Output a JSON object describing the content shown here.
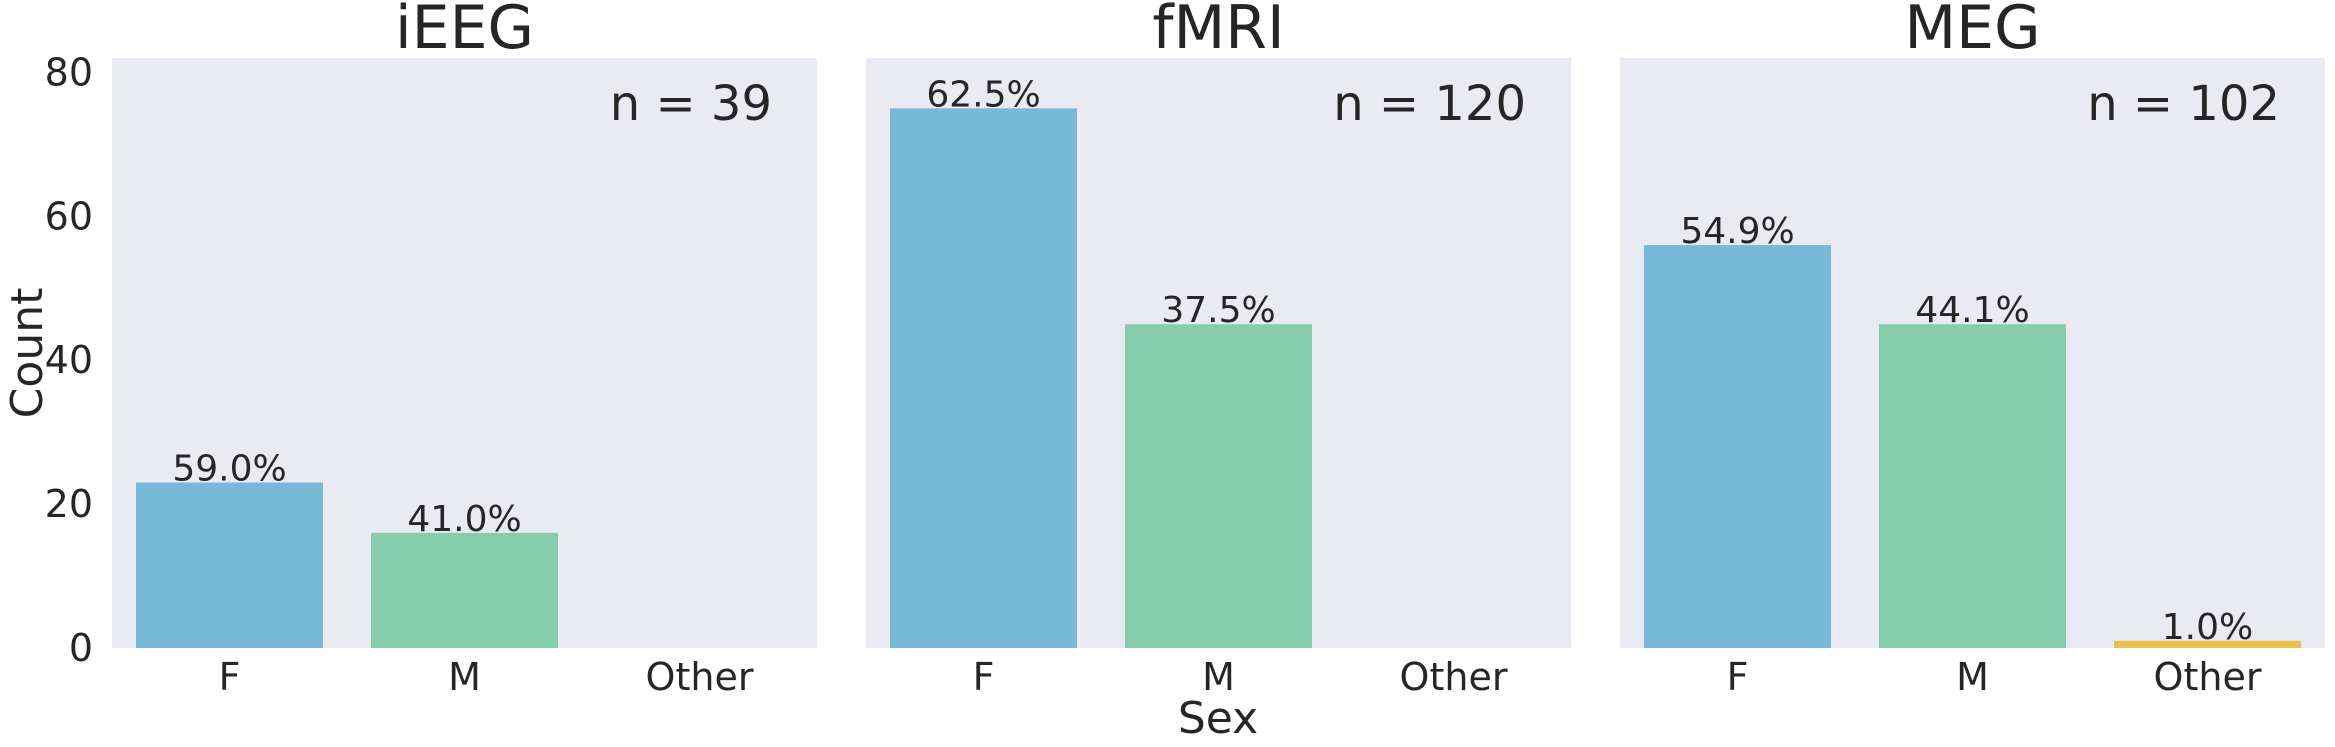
{
  "chart_data": {
    "type": "bar",
    "xlabel": "Sex",
    "ylabel": "Count",
    "ylim": [
      0,
      82
    ],
    "yticks": [
      "0",
      "20",
      "40",
      "60",
      "80"
    ],
    "yticks_values": [
      0,
      20,
      40,
      60,
      80
    ],
    "categories": [
      "F",
      "M",
      "Other"
    ],
    "grid": false,
    "colors": {
      "F": "#78b8d8",
      "M": "#85cdad",
      "Other": "#ebc14d",
      "panel_background": "#eaeaf2"
    },
    "panels": [
      {
        "title": "iEEG",
        "n_label": "n = 39",
        "values": [
          23,
          16,
          0
        ],
        "labels": [
          "59.0%",
          "41.0%",
          ""
        ]
      },
      {
        "title": "fMRI",
        "n_label": "n = 120",
        "values": [
          75,
          45,
          0
        ],
        "labels": [
          "62.5%",
          "37.5%",
          ""
        ]
      },
      {
        "title": "MEG",
        "n_label": "n = 102",
        "values": [
          56,
          45,
          1
        ],
        "labels": [
          "54.9%",
          "44.1%",
          "1.0%"
        ]
      }
    ]
  }
}
